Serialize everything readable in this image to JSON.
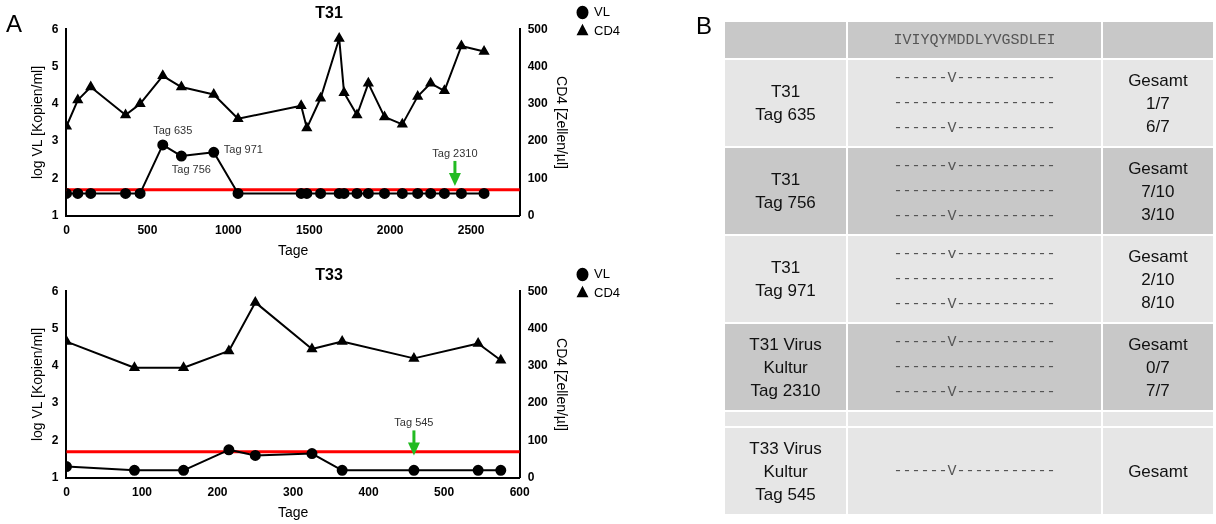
{
  "chart_data": [
    {
      "type": "line",
      "title": "T31",
      "xlabel": "Tage",
      "ylabel": "log VL [Kopien/ml]",
      "y2label": "CD4 [Zellen/µl]",
      "xlim": [
        0,
        2800
      ],
      "xticks": [
        0,
        500,
        1000,
        1500,
        2000,
        2500
      ],
      "ylim": [
        1,
        6
      ],
      "yticks": [
        1,
        2,
        3,
        4,
        5,
        6
      ],
      "y2lim": [
        0,
        500
      ],
      "y2ticks": [
        0,
        100,
        200,
        300,
        400,
        500
      ],
      "x": [
        0,
        70,
        150,
        365,
        455,
        595,
        710,
        910,
        1060,
        1450,
        1485,
        1570,
        1685,
        1715,
        1795,
        1865,
        1965,
        2075,
        2170,
        2250,
        2335,
        2440,
        2580
      ],
      "series": [
        {
          "name": "VL",
          "color": "#000000",
          "marker": "circle",
          "values": [
            1.6,
            1.6,
            1.6,
            1.6,
            1.6,
            2.9,
            2.6,
            2.7,
            1.6,
            1.6,
            1.6,
            1.6,
            1.6,
            1.6,
            1.6,
            1.6,
            1.6,
            1.6,
            1.6,
            1.6,
            1.6,
            1.6,
            1.6
          ]
        },
        {
          "name": "CD4",
          "color": "#000000",
          "marker": "triangle",
          "axis": "y2",
          "values": [
            240,
            310,
            345,
            270,
            300,
            375,
            345,
            325,
            260,
            295,
            235,
            315,
            475,
            330,
            270,
            355,
            265,
            245,
            320,
            355,
            335,
            455,
            440
          ]
        }
      ],
      "ref_lines": [
        {
          "axis": "y",
          "value": 1.7,
          "color": "#ff0000"
        }
      ],
      "annotations": [
        "A",
        {
          "text": "Tag 635",
          "x": 595,
          "y": 2.9
        },
        {
          "text": "Tag 756",
          "x": 710,
          "y": 2.6
        },
        {
          "text": "Tag 971",
          "x": 910,
          "y": 2.7
        },
        {
          "text": "Tag 2310",
          "x": 2400,
          "y": 1.8
        }
      ],
      "legend": "top right",
      "grid": false
    },
    {
      "type": "line",
      "title": "T33",
      "xlabel": "Tage",
      "ylabel": "log VL [Kopien/ml]",
      "y2label": "CD4 [Zellen/µl]",
      "xlim": [
        0,
        600
      ],
      "xticks": [
        0,
        100,
        200,
        300,
        400,
        500,
        600
      ],
      "ylim": [
        1,
        6
      ],
      "yticks": [
        1,
        2,
        3,
        4,
        5,
        6
      ],
      "y2lim": [
        0,
        500
      ],
      "y2ticks": [
        0,
        100,
        200,
        300,
        400,
        500
      ],
      "x": [
        0,
        90,
        155,
        215,
        250,
        325,
        365,
        460,
        545,
        575
      ],
      "series": [
        {
          "name": "VL",
          "color": "#000000",
          "marker": "circle",
          "values": [
            1.3,
            1.2,
            1.2,
            1.75,
            1.6,
            1.65,
            1.2,
            1.2,
            1.2,
            1.2
          ]
        },
        {
          "name": "CD4",
          "color": "#000000",
          "marker": "triangle",
          "axis": "y2",
          "values": [
            365,
            295,
            295,
            340,
            470,
            345,
            365,
            320,
            360,
            315
          ]
        }
      ],
      "ref_lines": [
        {
          "axis": "y",
          "value": 1.7,
          "color": "#ff0000"
        }
      ],
      "annotations": [
        {
          "text": "Tag 545",
          "x": 460,
          "y": 1.6
        }
      ],
      "legend": "top right",
      "grid": false
    },
    {
      "type": "other",
      "annotations": [
        "B",
        "IVIYQYMDDLYVGSDLEI",
        "T31\nTag 635",
        "------V-----------\n------------------\n------V-----------",
        "Gesamt\n1/7\n6/7",
        "T31\nTag 756",
        "------v-----------\n------------------\n------V-----------",
        "Gesamt\n7/10\n3/10",
        "T31\nTag 971",
        "------v-----------\n------------------\n------V-----------",
        "Gesamt\n2/10\n8/10",
        "T31 Virus\nKultur\nTag 2310",
        "------V-----------\n------------------\n------V-----------",
        "Gesamt\n0/7\n7/7",
        "T33 Virus\nKultur\nTag 545",
        "------V-----------",
        "Gesamt"
      ]
    }
  ]
}
